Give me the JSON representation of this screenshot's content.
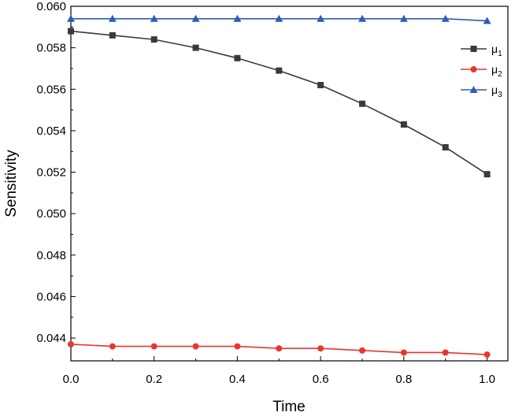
{
  "chart_data": {
    "type": "line",
    "xlabel": "Time",
    "ylabel": "Sensitivity",
    "xlim": [
      0,
      1.05
    ],
    "ylim": [
      0.0429,
      0.06
    ],
    "xticks": [
      0.0,
      0.2,
      0.4,
      0.6,
      0.8,
      1.0
    ],
    "xtick_labels": [
      "0.0",
      "0.2",
      "0.4",
      "0.6",
      "0.8",
      "1.0"
    ],
    "yticks": [
      0.044,
      0.046,
      0.048,
      0.05,
      0.052,
      0.054,
      0.056,
      0.058,
      0.06
    ],
    "ytick_labels": [
      "0.044",
      "0.046",
      "0.048",
      "0.050",
      "0.052",
      "0.054",
      "0.056",
      "0.058",
      "0.060"
    ],
    "grid": false,
    "legend_position": "top-right",
    "x": [
      0.0,
      0.1,
      0.2,
      0.3,
      0.4,
      0.5,
      0.6,
      0.7,
      0.8,
      0.9,
      1.0
    ],
    "series": [
      {
        "name": "μ",
        "name_sub": "1",
        "color": "#3a3a3a",
        "marker": "square",
        "values": [
          0.0588,
          0.0586,
          0.0584,
          0.058,
          0.0575,
          0.0569,
          0.0562,
          0.0553,
          0.0543,
          0.0532,
          0.0519
        ]
      },
      {
        "name": "μ",
        "name_sub": "2",
        "color": "#e8362d",
        "marker": "circle",
        "values": [
          0.0437,
          0.0436,
          0.0436,
          0.0436,
          0.0436,
          0.0435,
          0.0435,
          0.0434,
          0.0433,
          0.0433,
          0.0432
        ]
      },
      {
        "name": "μ",
        "name_sub": "3",
        "color": "#2e5cb8",
        "marker": "triangle",
        "values": [
          0.0594,
          0.0594,
          0.0594,
          0.0594,
          0.0594,
          0.0594,
          0.0594,
          0.0594,
          0.0594,
          0.0594,
          0.0593
        ]
      }
    ]
  }
}
